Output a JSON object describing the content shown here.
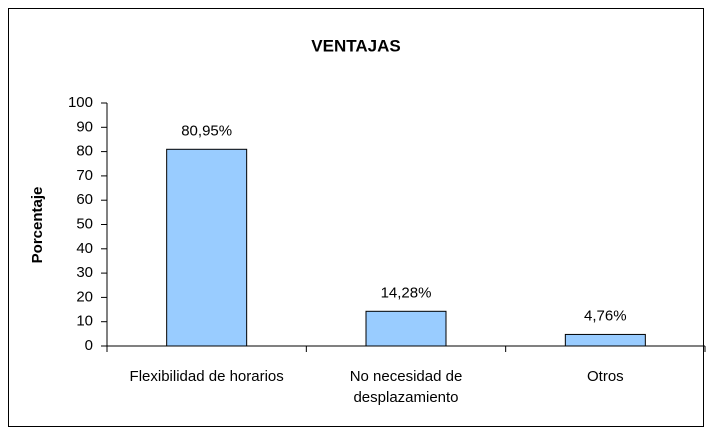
{
  "chart_data": {
    "type": "bar",
    "title": "VENTAJAS",
    "ylabel": "Porcentaje",
    "categories": [
      "Flexibilidad de horarios",
      "No necesidad de desplazamiento",
      "Otros"
    ],
    "values": [
      80.95,
      14.28,
      4.76
    ],
    "value_labels": [
      "80,95%",
      "14,28%",
      "4,76%"
    ],
    "color": "#99ccff",
    "ylim": [
      0,
      100
    ],
    "yticks": [
      0,
      10,
      20,
      30,
      40,
      50,
      60,
      70,
      80,
      90,
      100
    ]
  }
}
